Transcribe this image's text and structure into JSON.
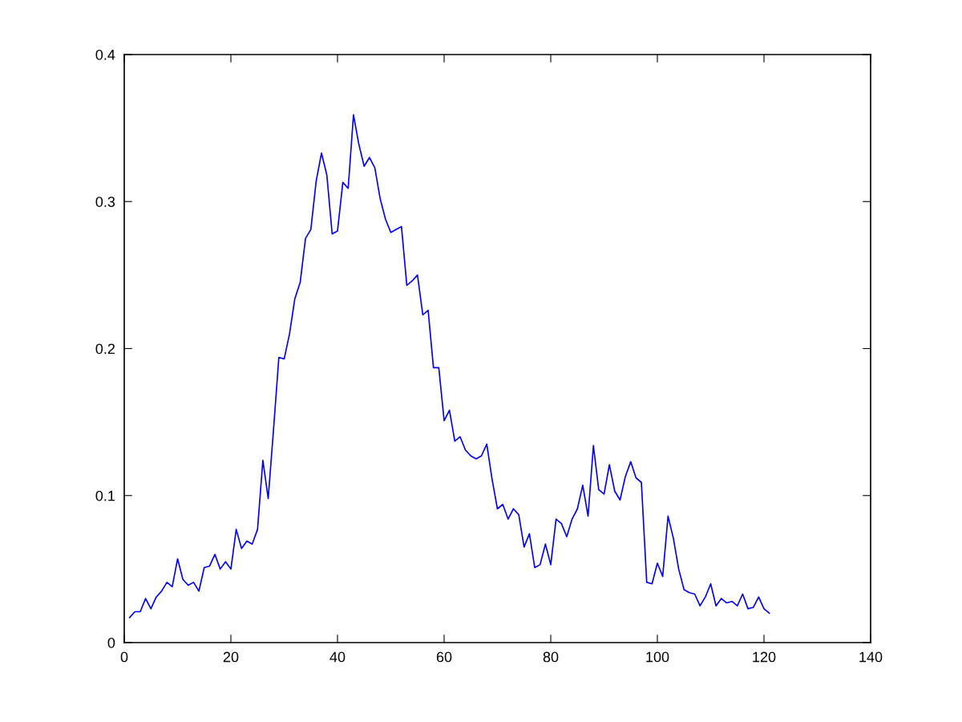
{
  "chart_data": {
    "type": "line",
    "x": [
      1,
      2,
      3,
      4,
      5,
      6,
      7,
      8,
      9,
      10,
      11,
      12,
      13,
      14,
      15,
      16,
      17,
      18,
      19,
      20,
      21,
      22,
      23,
      24,
      25,
      26,
      27,
      28,
      29,
      30,
      31,
      32,
      33,
      34,
      35,
      36,
      37,
      38,
      39,
      40,
      41,
      42,
      43,
      44,
      45,
      46,
      47,
      48,
      49,
      50,
      51,
      52,
      53,
      54,
      55,
      56,
      57,
      58,
      59,
      60,
      61,
      62,
      63,
      64,
      65,
      66,
      67,
      68,
      69,
      70,
      71,
      72,
      73,
      74,
      75,
      76,
      77,
      78,
      79,
      80,
      81,
      82,
      83,
      84,
      85,
      86,
      87,
      88,
      89,
      90,
      91,
      92,
      93,
      94,
      95,
      96,
      97,
      98,
      99,
      100,
      101,
      102,
      103,
      104,
      105,
      106,
      107,
      108,
      109,
      110,
      111,
      112,
      113,
      114,
      115,
      116,
      117,
      118,
      119,
      120,
      121
    ],
    "series": [
      {
        "color": "#0000ff",
        "values": [
          0.017,
          0.021,
          0.021,
          0.03,
          0.023,
          0.031,
          0.035,
          0.041,
          0.038,
          0.057,
          0.043,
          0.039,
          0.041,
          0.035,
          0.051,
          0.052,
          0.06,
          0.05,
          0.055,
          0.05,
          0.077,
          0.064,
          0.069,
          0.067,
          0.077,
          0.124,
          0.098,
          0.145,
          0.194,
          0.193,
          0.21,
          0.234,
          0.245,
          0.275,
          0.281,
          0.314,
          0.333,
          0.318,
          0.278,
          0.28,
          0.313,
          0.309,
          0.359,
          0.339,
          0.324,
          0.33,
          0.323,
          0.302,
          0.288,
          0.279,
          0.281,
          0.283,
          0.243,
          0.246,
          0.25,
          0.223,
          0.226,
          0.187,
          0.187,
          0.151,
          0.158,
          0.137,
          0.14,
          0.131,
          0.127,
          0.125,
          0.127,
          0.135,
          0.111,
          0.091,
          0.094,
          0.084,
          0.091,
          0.087,
          0.065,
          0.074,
          0.051,
          0.053,
          0.067,
          0.053,
          0.084,
          0.081,
          0.072,
          0.084,
          0.091,
          0.107,
          0.086,
          0.134,
          0.104,
          0.101,
          0.121,
          0.103,
          0.097,
          0.113,
          0.123,
          0.112,
          0.109,
          0.041,
          0.04,
          0.054,
          0.045,
          0.086,
          0.071,
          0.05,
          0.036,
          0.034,
          0.033,
          0.025,
          0.031,
          0.04,
          0.025,
          0.03,
          0.027,
          0.028,
          0.025,
          0.033,
          0.023,
          0.024,
          0.031,
          0.023,
          0.02
        ]
      }
    ],
    "xlim": [
      0,
      140
    ],
    "xticks": [
      0,
      20,
      40,
      60,
      80,
      100,
      120,
      140
    ],
    "ylim": [
      0,
      0.4
    ],
    "yticks": [
      0,
      0.1,
      0.2,
      0.3,
      0.4
    ],
    "grid": false,
    "legend": false,
    "marker": "none",
    "line_style": "solid"
  }
}
